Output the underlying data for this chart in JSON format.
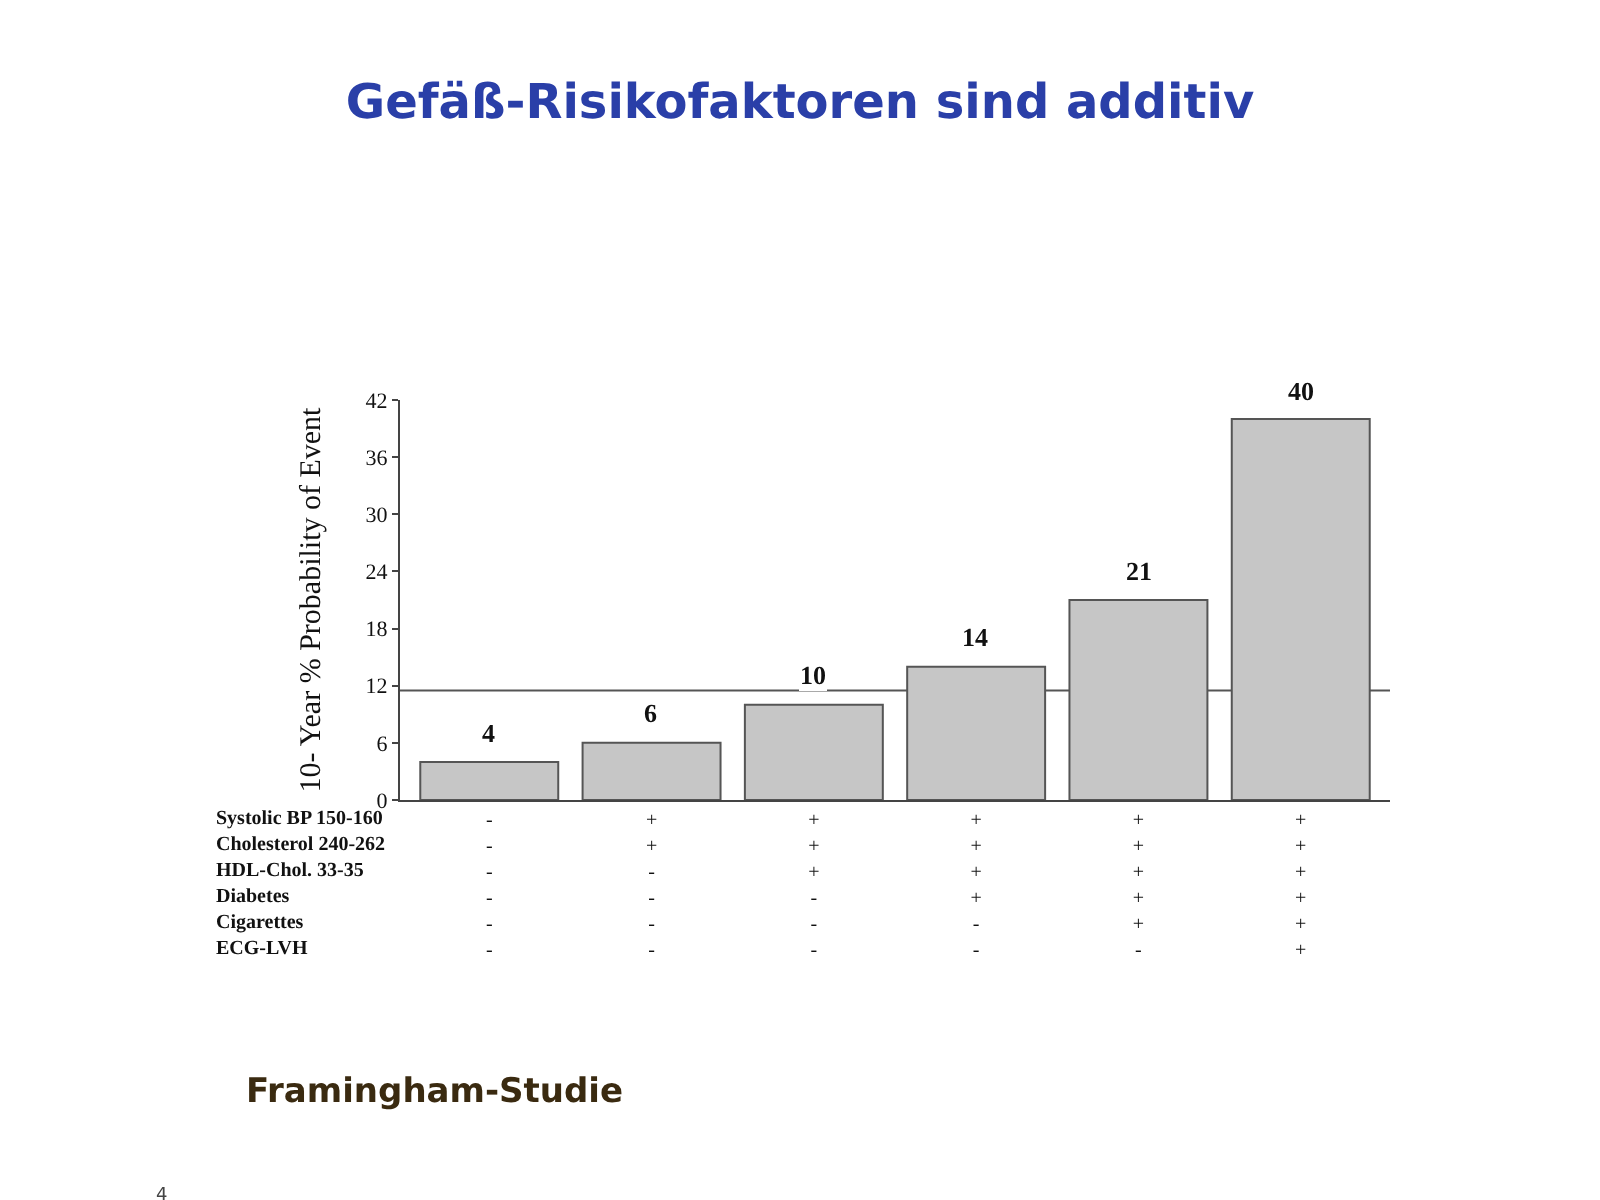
{
  "chart_data": {
    "type": "bar",
    "title": "Gefäß-Risikofaktoren sind additiv",
    "ylabel": "10- Year % Probability of Event",
    "categories": [
      "-\n-\n-\n-\n-\n-",
      "+\n+\n-\n-\n-\n-",
      "+\n+\n+\n-\n-\n-",
      "+\n+\n+\n+\n-\n-",
      "+\n+\n+\n+\n+\n-",
      "+\n+\n+\n+\n+\n+"
    ],
    "values": [
      4,
      6,
      10,
      14,
      21,
      40
    ],
    "color": "#c6c6c6",
    "data_labels": true,
    "ylim": [
      0,
      42
    ],
    "yticks": [
      0,
      6,
      12,
      18,
      24,
      30,
      36,
      42
    ],
    "ref_lines": [
      {
        "axis": "y",
        "value": 11.5,
        "color": "#555555"
      }
    ],
    "annotations": [
      "Systolic BP 150-160\nCholesterol 240-262\nHDL-Chol. 33-35\nDiabetes\nCigarettes\nECG-LVH",
      "Framingham-Studie",
      "4"
    ]
  }
}
